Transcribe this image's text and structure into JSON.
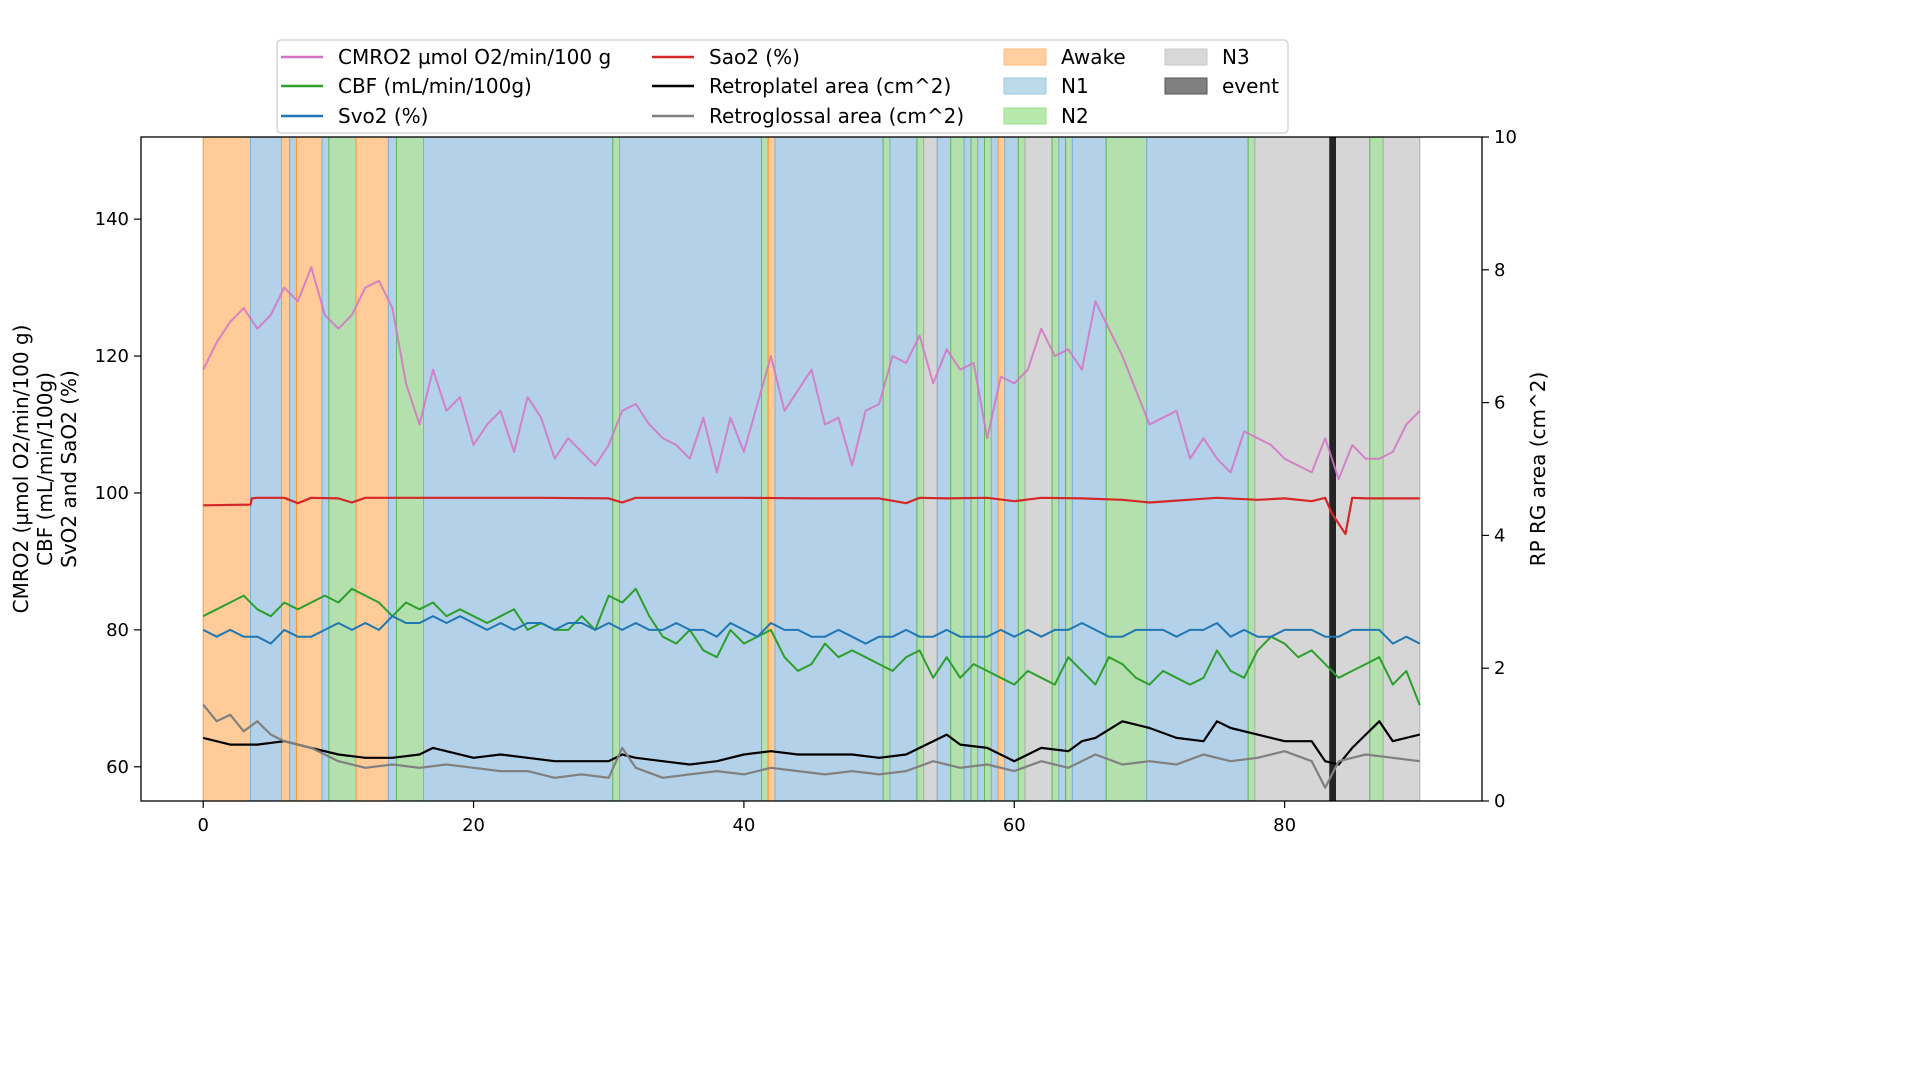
{
  "chart_data": {
    "type": "line",
    "title": "",
    "xlabel": "",
    "xlim": [
      -4.6,
      94.6
    ],
    "xticks": [
      0,
      20,
      40,
      60,
      80
    ],
    "ylabel_lines": [
      "CMRO2 (µmol O2/min/100 g)",
      "CBF (mL/min/100g)",
      "SvO2 and SaO2 (%)"
    ],
    "ylim": [
      55,
      152
    ],
    "yticks": [
      60,
      80,
      100,
      120,
      140
    ],
    "y2label": "RP RG area (cm^2)",
    "y2lim": [
      0,
      10
    ],
    "y2ticks": [
      0,
      2,
      4,
      6,
      8,
      10
    ],
    "legend_location": "top-center",
    "legend": [
      {
        "label": "CMRO2 µmol O2/min/100 g",
        "kind": "line",
        "color": "#d473c5"
      },
      {
        "label": "CBF (mL/min/100g)",
        "kind": "line",
        "color": "#2ca02c"
      },
      {
        "label": "Svo2 (%)",
        "kind": "line",
        "color": "#1f77b4"
      },
      {
        "label": "Sao2 (%)",
        "kind": "line",
        "color": "#d62728"
      },
      {
        "label": "Retroplatel area (cm^2)",
        "kind": "line",
        "color": "#000000"
      },
      {
        "label": "Retroglossal area (cm^2)",
        "kind": "line",
        "color": "#808080"
      },
      {
        "label": "Awake",
        "kind": "patch",
        "color": "#ffbb78"
      },
      {
        "label": "N1",
        "kind": "patch",
        "color": "#9ecae1"
      },
      {
        "label": "N2",
        "kind": "patch",
        "color": "#98df8a"
      },
      {
        "label": "N3",
        "kind": "patch",
        "color": "#c7c7c7"
      },
      {
        "label": "event",
        "kind": "patch",
        "color": "#555555"
      }
    ],
    "stage_colors": {
      "Awake": {
        "fill": "#ffcc99",
        "edge": "#ff9933"
      },
      "N1": {
        "fill": "#b3d1e8",
        "edge": "#7fb0d6"
      },
      "N2": {
        "fill": "#b3e0ad",
        "edge": "#63b75c"
      },
      "N3": {
        "fill": "#d6d6d6",
        "edge": "#b0b0b0"
      }
    },
    "stages": [
      {
        "stage": "Awake",
        "start": 0.0,
        "end": 3.5
      },
      {
        "stage": "N1",
        "start": 3.5,
        "end": 5.8
      },
      {
        "stage": "Awake",
        "start": 5.8,
        "end": 6.4
      },
      {
        "stage": "N1",
        "start": 6.4,
        "end": 6.9
      },
      {
        "stage": "Awake",
        "start": 6.9,
        "end": 8.8
      },
      {
        "stage": "N1",
        "start": 8.8,
        "end": 9.3
      },
      {
        "stage": "N2",
        "start": 9.3,
        "end": 11.3
      },
      {
        "stage": "Awake",
        "start": 11.3,
        "end": 13.7
      },
      {
        "stage": "N1",
        "start": 13.7,
        "end": 14.3
      },
      {
        "stage": "N2",
        "start": 14.3,
        "end": 16.3
      },
      {
        "stage": "N1",
        "start": 16.3,
        "end": 30.3
      },
      {
        "stage": "N2",
        "start": 30.3,
        "end": 30.8
      },
      {
        "stage": "N1",
        "start": 30.8,
        "end": 41.3
      },
      {
        "stage": "N2",
        "start": 41.3,
        "end": 41.8
      },
      {
        "stage": "Awake",
        "start": 41.8,
        "end": 42.3
      },
      {
        "stage": "N1",
        "start": 42.3,
        "end": 50.3
      },
      {
        "stage": "N2",
        "start": 50.3,
        "end": 50.8
      },
      {
        "stage": "N1",
        "start": 50.8,
        "end": 52.8
      },
      {
        "stage": "N2",
        "start": 52.8,
        "end": 53.3
      },
      {
        "stage": "N3",
        "start": 53.3,
        "end": 54.3
      },
      {
        "stage": "N1",
        "start": 54.3,
        "end": 55.3
      },
      {
        "stage": "N2",
        "start": 55.3,
        "end": 56.3
      },
      {
        "stage": "N1",
        "start": 56.3,
        "end": 56.8
      },
      {
        "stage": "N2",
        "start": 56.8,
        "end": 57.3
      },
      {
        "stage": "N1",
        "start": 57.3,
        "end": 57.8
      },
      {
        "stage": "N2",
        "start": 57.8,
        "end": 58.3
      },
      {
        "stage": "N1",
        "start": 58.3,
        "end": 58.8
      },
      {
        "stage": "Awake",
        "start": 58.8,
        "end": 59.3
      },
      {
        "stage": "N1",
        "start": 59.3,
        "end": 60.3
      },
      {
        "stage": "N2",
        "start": 60.3,
        "end": 60.8
      },
      {
        "stage": "N3",
        "start": 60.8,
        "end": 62.8
      },
      {
        "stage": "N2",
        "start": 62.8,
        "end": 63.3
      },
      {
        "stage": "N1",
        "start": 63.3,
        "end": 63.8
      },
      {
        "stage": "N2",
        "start": 63.8,
        "end": 64.3
      },
      {
        "stage": "N1",
        "start": 64.3,
        "end": 66.8
      },
      {
        "stage": "N2",
        "start": 66.8,
        "end": 69.8
      },
      {
        "stage": "N1",
        "start": 69.8,
        "end": 77.3
      },
      {
        "stage": "N2",
        "start": 77.3,
        "end": 77.8
      },
      {
        "stage": "N3",
        "start": 77.8,
        "end": 86.3
      },
      {
        "stage": "N2",
        "start": 86.3,
        "end": 87.3
      },
      {
        "stage": "N3",
        "start": 87.3,
        "end": 90.0
      }
    ],
    "events": [
      {
        "start": 83.3,
        "end": 83.8
      }
    ],
    "series": [
      {
        "name": "CMRO2 µmol O2/min/100 g",
        "axis": "left",
        "color": "#d473c5",
        "width": 2,
        "x": [
          0,
          1,
          2,
          3,
          4,
          5,
          6,
          7,
          8,
          9,
          10,
          11,
          12,
          13,
          14,
          15,
          16,
          17,
          18,
          19,
          20,
          21,
          22,
          23,
          24,
          25,
          26,
          27,
          28,
          29,
          30,
          31,
          32,
          33,
          34,
          35,
          36,
          37,
          38,
          39,
          40,
          41,
          42,
          43,
          44,
          45,
          46,
          47,
          48,
          49,
          50,
          51,
          52,
          53,
          54,
          55,
          56,
          57,
          58,
          59,
          60,
          61,
          62,
          63,
          64,
          65,
          66,
          67,
          68,
          69,
          70,
          71,
          72,
          73,
          74,
          75,
          76,
          77,
          78,
          79,
          80,
          81,
          82,
          83,
          84,
          85,
          86,
          87,
          88,
          89,
          90
        ],
        "values": [
          118,
          122,
          125,
          127,
          124,
          126,
          130,
          128,
          133,
          126,
          124,
          126,
          130,
          131,
          127,
          116,
          110,
          118,
          112,
          114,
          107,
          110,
          112,
          106,
          114,
          111,
          105,
          108,
          106,
          104,
          107,
          112,
          113,
          110,
          108,
          107,
          105,
          111,
          103,
          111,
          106,
          113,
          120,
          112,
          115,
          118,
          110,
          111,
          104,
          112,
          113,
          120,
          119,
          123,
          116,
          121,
          118,
          119,
          108,
          117,
          116,
          118,
          124,
          120,
          121,
          118,
          128,
          124,
          120,
          115,
          110,
          111,
          112,
          105,
          108,
          105,
          103,
          109,
          108,
          107,
          105,
          104,
          103,
          108,
          102,
          107,
          105,
          105,
          106,
          110,
          112
        ]
      },
      {
        "name": "CBF (mL/min/100g)",
        "axis": "left",
        "color": "#2ca02c",
        "width": 2,
        "x": [
          0,
          1,
          2,
          3,
          4,
          5,
          6,
          7,
          8,
          9,
          10,
          11,
          12,
          13,
          14,
          15,
          16,
          17,
          18,
          19,
          20,
          21,
          22,
          23,
          24,
          25,
          26,
          27,
          28,
          29,
          30,
          31,
          32,
          33,
          34,
          35,
          36,
          37,
          38,
          39,
          40,
          41,
          42,
          43,
          44,
          45,
          46,
          47,
          48,
          49,
          50,
          51,
          52,
          53,
          54,
          55,
          56,
          57,
          58,
          59,
          60,
          61,
          62,
          63,
          64,
          65,
          66,
          67,
          68,
          69,
          70,
          71,
          72,
          73,
          74,
          75,
          76,
          77,
          78,
          79,
          80,
          81,
          82,
          83,
          84,
          85,
          86,
          87,
          88,
          89,
          90
        ],
        "values": [
          82,
          83,
          84,
          85,
          83,
          82,
          84,
          83,
          84,
          85,
          84,
          86,
          85,
          84,
          82,
          84,
          83,
          84,
          82,
          83,
          82,
          81,
          82,
          83,
          80,
          81,
          80,
          80,
          82,
          80,
          85,
          84,
          86,
          82,
          79,
          78,
          80,
          77,
          76,
          80,
          78,
          79,
          80,
          76,
          74,
          75,
          78,
          76,
          77,
          76,
          75,
          74,
          76,
          77,
          73,
          76,
          73,
          75,
          74,
          73,
          72,
          74,
          73,
          72,
          76,
          74,
          72,
          76,
          75,
          73,
          72,
          74,
          73,
          72,
          73,
          77,
          74,
          73,
          77,
          79,
          78,
          76,
          77,
          75,
          73,
          74,
          75,
          76,
          72,
          74,
          69
        ]
      },
      {
        "name": "Svo2 (%)",
        "axis": "left",
        "color": "#1f77b4",
        "width": 2,
        "x": [
          0,
          1,
          2,
          3,
          4,
          5,
          6,
          7,
          8,
          9,
          10,
          11,
          12,
          13,
          14,
          15,
          16,
          17,
          18,
          19,
          20,
          21,
          22,
          23,
          24,
          25,
          26,
          27,
          28,
          29,
          30,
          31,
          32,
          33,
          34,
          35,
          36,
          37,
          38,
          39,
          40,
          41,
          42,
          43,
          44,
          45,
          46,
          47,
          48,
          49,
          50,
          51,
          52,
          53,
          54,
          55,
          56,
          57,
          58,
          59,
          60,
          61,
          62,
          63,
          64,
          65,
          66,
          67,
          68,
          69,
          70,
          71,
          72,
          73,
          74,
          75,
          76,
          77,
          78,
          79,
          80,
          81,
          82,
          83,
          84,
          85,
          86,
          87,
          88,
          89,
          90
        ],
        "values": [
          80,
          79,
          80,
          79,
          79,
          78,
          80,
          79,
          79,
          80,
          81,
          80,
          81,
          80,
          82,
          81,
          81,
          82,
          81,
          82,
          81,
          80,
          81,
          80,
          81,
          81,
          80,
          81,
          81,
          80,
          81,
          80,
          81,
          80,
          80,
          81,
          80,
          80,
          79,
          81,
          80,
          79,
          81,
          80,
          80,
          79,
          79,
          80,
          79,
          78,
          79,
          79,
          80,
          79,
          79,
          80,
          79,
          79,
          79,
          80,
          79,
          80,
          79,
          80,
          80,
          81,
          80,
          79,
          79,
          80,
          80,
          80,
          79,
          80,
          80,
          81,
          79,
          80,
          79,
          79,
          80,
          80,
          80,
          79,
          79,
          80,
          80,
          80,
          78,
          79,
          78
        ]
      },
      {
        "name": "Sao2 (%)",
        "axis": "left",
        "color": "#d62728",
        "width": 2.2,
        "x": [
          0,
          3.5,
          3.6,
          4,
          6,
          7,
          8,
          10,
          11,
          12,
          14,
          20,
          25,
          30,
          31,
          32,
          35,
          40,
          45,
          50,
          52,
          53,
          55,
          58,
          60,
          62,
          65,
          68,
          70,
          75,
          78,
          80,
          82,
          83,
          83.5,
          84,
          84.5,
          85,
          86,
          88,
          90
        ],
        "values": [
          98.2,
          98.3,
          99.2,
          99.3,
          99.3,
          98.5,
          99.3,
          99.2,
          98.6,
          99.3,
          99.3,
          99.3,
          99.3,
          99.2,
          98.6,
          99.3,
          99.3,
          99.3,
          99.2,
          99.2,
          98.5,
          99.3,
          99.2,
          99.3,
          98.8,
          99.3,
          99.2,
          99.0,
          98.6,
          99.3,
          99.0,
          99.2,
          98.8,
          99.3,
          97.0,
          95.5,
          94.0,
          99.3,
          99.2,
          99.2,
          99.2
        ]
      },
      {
        "name": "Retroplatel area (cm^2)",
        "axis": "right",
        "color": "#000000",
        "width": 2.2,
        "x": [
          0,
          2,
          4,
          6,
          8,
          10,
          12,
          14,
          16,
          17,
          18,
          20,
          22,
          24,
          26,
          28,
          30,
          31,
          32,
          34,
          36,
          38,
          40,
          42,
          44,
          46,
          48,
          50,
          52,
          54,
          55,
          56,
          58,
          60,
          62,
          64,
          65,
          66,
          68,
          70,
          72,
          74,
          75,
          76,
          78,
          80,
          82,
          83,
          84,
          85,
          86,
          87,
          88,
          90
        ],
        "values": [
          0.95,
          0.85,
          0.85,
          0.9,
          0.8,
          0.7,
          0.65,
          0.65,
          0.7,
          0.8,
          0.75,
          0.65,
          0.7,
          0.65,
          0.6,
          0.6,
          0.6,
          0.7,
          0.65,
          0.6,
          0.55,
          0.6,
          0.7,
          0.75,
          0.7,
          0.7,
          0.7,
          0.65,
          0.7,
          0.9,
          1.0,
          0.85,
          0.8,
          0.6,
          0.8,
          0.75,
          0.9,
          0.95,
          1.2,
          1.1,
          0.95,
          0.9,
          1.2,
          1.1,
          1.0,
          0.9,
          0.9,
          0.6,
          0.55,
          0.8,
          1.0,
          1.2,
          0.9,
          1.0
        ]
      },
      {
        "name": "Retroglossal area (cm^2)",
        "axis": "right",
        "color": "#808080",
        "width": 2.2,
        "x": [
          0,
          1,
          2,
          3,
          4,
          5,
          6,
          8,
          10,
          12,
          14,
          16,
          18,
          20,
          22,
          24,
          26,
          28,
          30,
          31,
          32,
          34,
          36,
          38,
          40,
          42,
          44,
          46,
          48,
          50,
          52,
          54,
          56,
          58,
          60,
          62,
          64,
          66,
          68,
          70,
          72,
          74,
          76,
          78,
          80,
          82,
          83,
          84,
          86,
          88,
          90
        ],
        "values": [
          1.45,
          1.2,
          1.3,
          1.05,
          1.2,
          1.0,
          0.9,
          0.8,
          0.6,
          0.5,
          0.55,
          0.5,
          0.55,
          0.5,
          0.45,
          0.45,
          0.35,
          0.4,
          0.35,
          0.8,
          0.5,
          0.35,
          0.4,
          0.45,
          0.4,
          0.5,
          0.45,
          0.4,
          0.45,
          0.4,
          0.45,
          0.6,
          0.5,
          0.55,
          0.45,
          0.6,
          0.5,
          0.7,
          0.55,
          0.6,
          0.55,
          0.7,
          0.6,
          0.65,
          0.75,
          0.6,
          0.2,
          0.6,
          0.7,
          0.65,
          0.6
        ]
      }
    ]
  }
}
